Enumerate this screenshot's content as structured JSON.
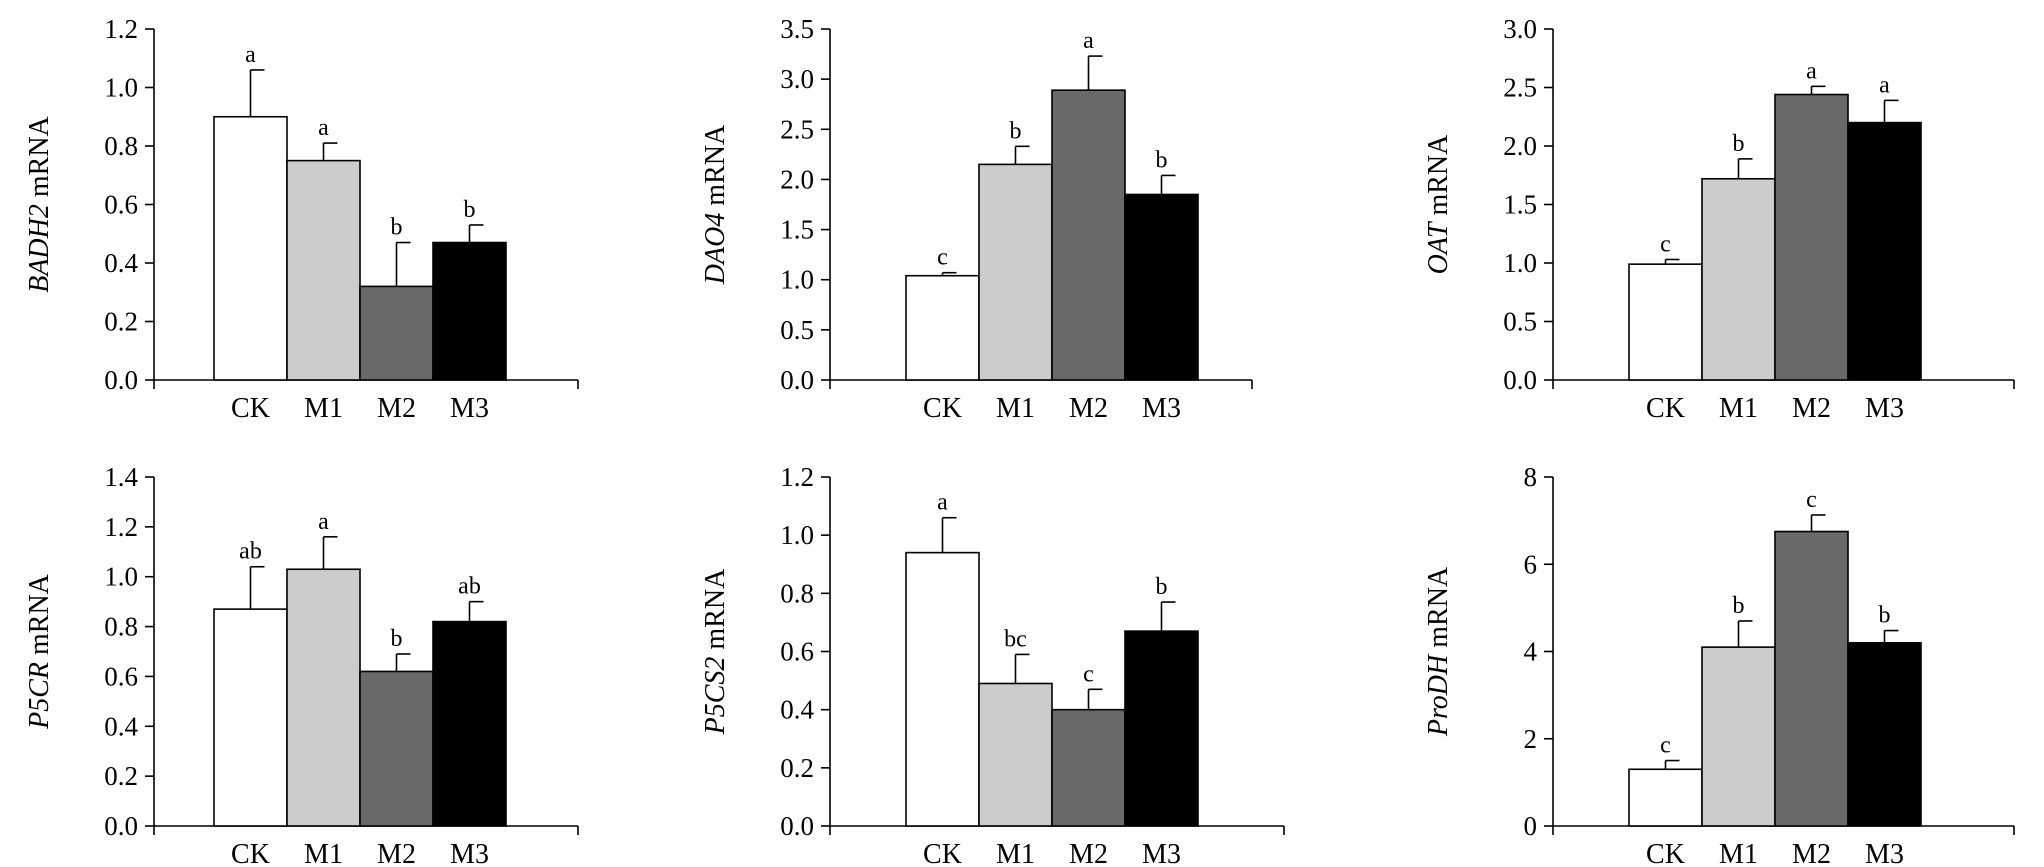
{
  "chart_data": [
    {
      "type": "bar",
      "categories": [
        "CK",
        "M1",
        "M2",
        "M3"
      ],
      "ylabel_gene": "BADH2",
      "ylabel_suffix": " mRNA",
      "ylim": [
        0,
        1.2
      ],
      "yticks": [
        "0.0",
        "0.2",
        "0.4",
        "0.6",
        "0.8",
        "1.0",
        "1.2"
      ],
      "values": [
        0.9,
        0.75,
        0.32,
        0.47
      ],
      "errors": [
        0.16,
        0.06,
        0.15,
        0.06
      ],
      "letters": [
        "a",
        "a",
        "b",
        "b"
      ]
    },
    {
      "type": "bar",
      "categories": [
        "CK",
        "M1",
        "M2",
        "M3"
      ],
      "ylabel_gene": "DAO4",
      "ylabel_suffix": " mRNA",
      "ylim": [
        0,
        3.5
      ],
      "yticks": [
        "0.0",
        "0.5",
        "1.0",
        "1.5",
        "2.0",
        "2.5",
        "3.0",
        "3.5"
      ],
      "values": [
        1.04,
        2.15,
        2.89,
        1.85
      ],
      "errors": [
        0.03,
        0.18,
        0.34,
        0.19
      ],
      "letters": [
        "c",
        "b",
        "a",
        "b"
      ]
    },
    {
      "type": "bar",
      "categories": [
        "CK",
        "M1",
        "M2",
        "M3"
      ],
      "ylabel_gene": "OAT",
      "ylabel_suffix": " mRNA",
      "ylim": [
        0,
        3.0
      ],
      "yticks": [
        "0.0",
        "0.5",
        "1.0",
        "1.5",
        "2.0",
        "2.5",
        "3.0"
      ],
      "values": [
        0.99,
        1.72,
        2.44,
        2.2
      ],
      "errors": [
        0.04,
        0.17,
        0.07,
        0.19
      ],
      "letters": [
        "c",
        "b",
        "a",
        "a"
      ]
    },
    {
      "type": "bar",
      "categories": [
        "CK",
        "M1",
        "M2",
        "M3"
      ],
      "ylabel_gene": "P5CR",
      "ylabel_suffix": " mRNA",
      "ylim": [
        0,
        1.4
      ],
      "yticks": [
        "0.0",
        "0.2",
        "0.4",
        "0.6",
        "0.8",
        "1.0",
        "1.2",
        "1.4"
      ],
      "values": [
        0.87,
        1.03,
        0.62,
        0.82
      ],
      "errors": [
        0.17,
        0.13,
        0.07,
        0.08
      ],
      "letters": [
        "ab",
        "a",
        "b",
        "ab"
      ]
    },
    {
      "type": "bar",
      "categories": [
        "CK",
        "M1",
        "M2",
        "M3"
      ],
      "ylabel_gene": "P5CS2",
      "ylabel_suffix": " mRNA",
      "ylim": [
        0,
        1.2
      ],
      "yticks": [
        "0.0",
        "0.2",
        "0.4",
        "0.6",
        "0.8",
        "1.0",
        "1.2"
      ],
      "values": [
        0.94,
        0.49,
        0.4,
        0.67
      ],
      "errors": [
        0.12,
        0.1,
        0.07,
        0.1
      ],
      "letters": [
        "a",
        "bc",
        "c",
        "b"
      ]
    },
    {
      "type": "bar",
      "categories": [
        "CK",
        "M1",
        "M2",
        "M3"
      ],
      "ylabel_gene": "ProDH",
      "ylabel_suffix": " mRNA",
      "ylim": [
        0,
        8
      ],
      "yticks": [
        "0",
        "2",
        "4",
        "6",
        "8"
      ],
      "values": [
        1.3,
        4.1,
        6.75,
        4.2
      ],
      "errors": [
        0.2,
        0.6,
        0.38,
        0.28
      ],
      "letters": [
        "c",
        "b",
        "c",
        "b"
      ]
    }
  ],
  "colors": {
    "CK": "#ffffff",
    "M1": "#cccccc",
    "M2": "#696969",
    "M3": "#000000"
  }
}
